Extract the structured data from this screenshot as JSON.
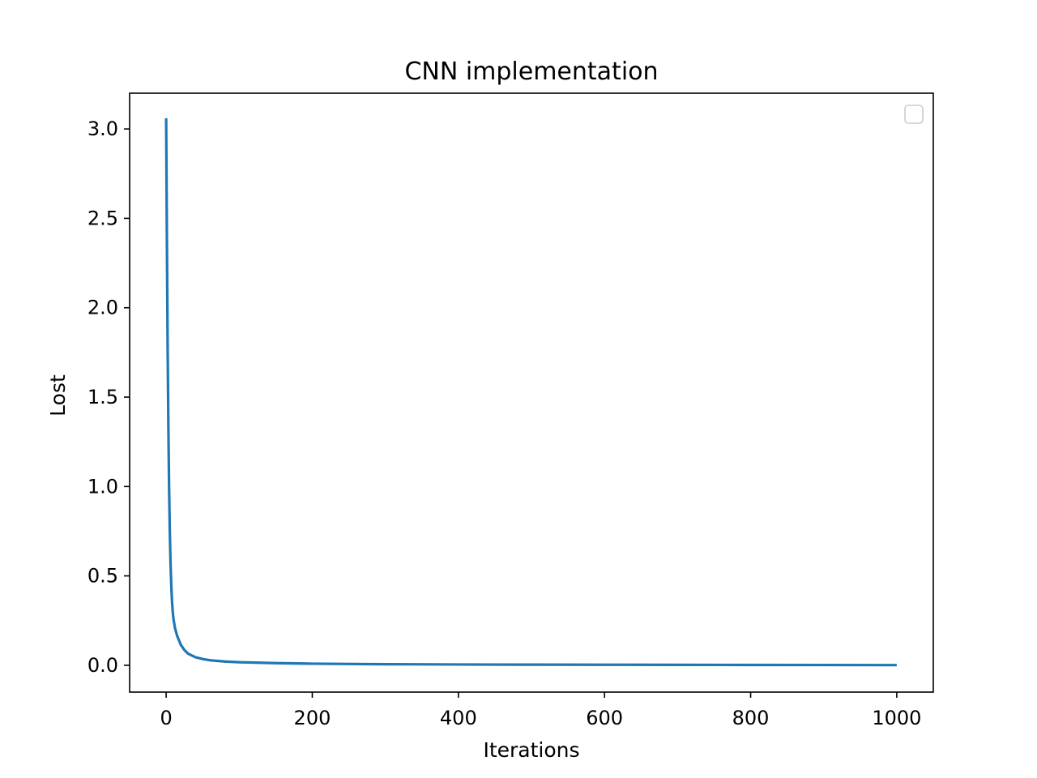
{
  "chart_data": {
    "type": "line",
    "title": "CNN implementation",
    "xlabel": "Iterations",
    "ylabel": "Lost",
    "xlim": [
      -50,
      1050
    ],
    "ylim": [
      -0.15,
      3.2
    ],
    "xticks": [
      0,
      200,
      400,
      600,
      800,
      1000
    ],
    "xtick_labels": [
      "0",
      "200",
      "400",
      "600",
      "800",
      "1000"
    ],
    "yticks": [
      0.0,
      0.5,
      1.0,
      1.5,
      2.0,
      2.5,
      3.0
    ],
    "ytick_labels": [
      "0.0",
      "0.5",
      "1.0",
      "1.5",
      "2.0",
      "2.5",
      "3.0"
    ],
    "grid": false,
    "legend": {
      "placement": "top-right",
      "entries": []
    },
    "series": [
      {
        "color": "#1f77b4",
        "x": [
          0,
          1,
          2,
          3,
          4,
          5,
          6,
          7,
          8,
          9,
          10,
          12,
          15,
          20,
          25,
          30,
          40,
          50,
          60,
          80,
          100,
          150,
          200,
          300,
          400,
          500,
          600,
          700,
          800,
          900,
          1000
        ],
        "y": [
          3.06,
          2.4,
          1.8,
          1.35,
          1.0,
          0.75,
          0.57,
          0.45,
          0.36,
          0.3,
          0.26,
          0.21,
          0.165,
          0.115,
          0.085,
          0.065,
          0.045,
          0.035,
          0.028,
          0.021,
          0.017,
          0.012,
          0.009,
          0.006,
          0.0045,
          0.0035,
          0.003,
          0.0025,
          0.002,
          0.0015,
          0.001
        ]
      }
    ]
  }
}
